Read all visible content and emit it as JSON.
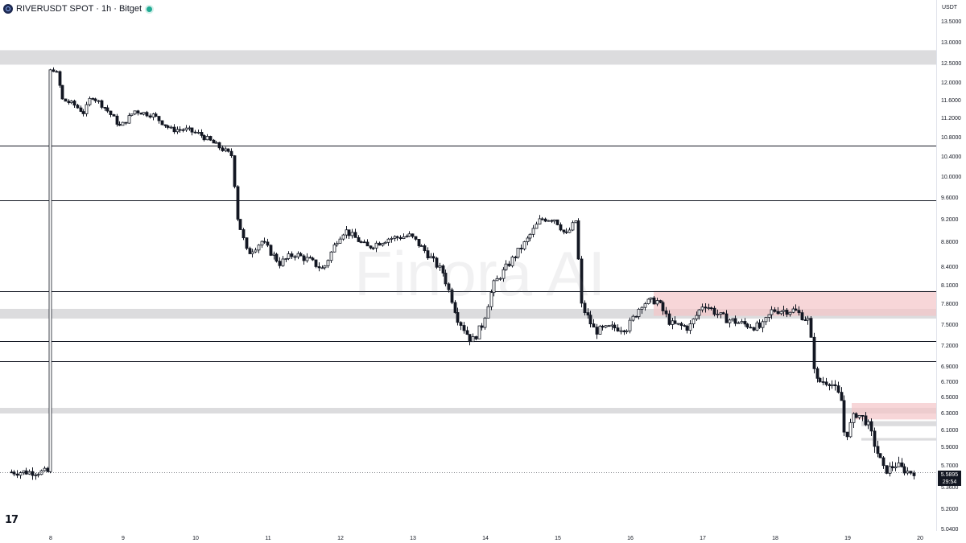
{
  "header": {
    "title": "RIVERUSDT SPOT · 1h · Bitget"
  },
  "axis": {
    "currency": "USDT"
  },
  "watermark": "Finora AI",
  "last_price": {
    "price": "5.5895",
    "countdown": "29:54"
  },
  "colors": {
    "candle_up": "#ffffff",
    "candle_down": "#131722",
    "zone_grey": "#dcdcde",
    "zone_red": "#f4c4c8",
    "level_line": "#131722",
    "live_dot": "#22ab94"
  },
  "chart_data": {
    "type": "candlestick",
    "symbol": "RIVERUSDT",
    "exchange": "Bitget",
    "timeframe": "1h",
    "ylim": [
      5.04,
      13.5
    ],
    "y_ticks": [
      "13.5000",
      "13.0000",
      "12.5000",
      "12.0000",
      "11.6000",
      "11.2000",
      "10.8000",
      "10.4000",
      "10.0000",
      "9.6000",
      "9.2000",
      "8.8000",
      "8.4000",
      "8.1000",
      "7.8000",
      "7.5000",
      "7.2000",
      "6.9000",
      "6.7000",
      "6.5000",
      "6.3000",
      "6.1000",
      "5.9000",
      "5.7000",
      "5.3600",
      "5.2000",
      "5.0400"
    ],
    "x_ticks": [
      "8",
      "9",
      "10",
      "11",
      "12",
      "13",
      "14",
      "15",
      "16",
      "17",
      "18",
      "19",
      "20"
    ],
    "close_path": [
      [
        "8",
        12.25
      ],
      [
        "8.1",
        12.35
      ],
      [
        "8.2",
        11.6
      ],
      [
        "8.35",
        11.5
      ],
      [
        "8.5",
        11.3
      ],
      [
        "8.6",
        11.7
      ],
      [
        "8.8",
        11.4
      ],
      [
        "9",
        11.0
      ],
      [
        "9.2",
        11.35
      ],
      [
        "9.45",
        11.25
      ],
      [
        "9.7",
        10.95
      ],
      [
        "9.9",
        10.95
      ],
      [
        "10.1",
        10.85
      ],
      [
        "10.3",
        10.65
      ],
      [
        "10.45",
        10.5
      ],
      [
        "10.55",
        10.4
      ],
      [
        "10.6",
        9.3
      ],
      [
        "10.75",
        8.6
      ],
      [
        "10.95",
        8.8
      ],
      [
        "11.2",
        8.45
      ],
      [
        "11.4",
        8.6
      ],
      [
        "11.6",
        8.5
      ],
      [
        "11.8",
        8.35
      ],
      [
        "12.0",
        8.85
      ],
      [
        "12.1",
        9.0
      ],
      [
        "12.4",
        8.7
      ],
      [
        "12.7",
        8.85
      ],
      [
        "13.0",
        8.9
      ],
      [
        "13.2",
        8.65
      ],
      [
        "13.45",
        8.3
      ],
      [
        "13.65",
        7.6
      ],
      [
        "13.85",
        7.25
      ],
      [
        "14.0",
        7.5
      ],
      [
        "14.15",
        8.1
      ],
      [
        "14.4",
        8.5
      ],
      [
        "14.6",
        8.8
      ],
      [
        "14.8",
        9.2
      ],
      [
        "15.0",
        9.2
      ],
      [
        "15.15",
        8.9
      ],
      [
        "15.3",
        9.2
      ],
      [
        "15.35",
        7.8
      ],
      [
        "15.55",
        7.4
      ],
      [
        "15.8",
        7.45
      ],
      [
        "16.0",
        7.45
      ],
      [
        "16.2",
        7.8
      ],
      [
        "16.4",
        7.85
      ],
      [
        "16.6",
        7.5
      ],
      [
        "16.85",
        7.45
      ],
      [
        "17.05",
        7.8
      ],
      [
        "17.3",
        7.6
      ],
      [
        "17.6",
        7.5
      ],
      [
        "17.85",
        7.45
      ],
      [
        "18.0",
        7.7
      ],
      [
        "18.3",
        7.7
      ],
      [
        "18.5",
        7.55
      ],
      [
        "18.6",
        6.7
      ],
      [
        "18.8",
        6.7
      ],
      [
        "18.95",
        6.45
      ],
      [
        "19.0",
        6.0
      ],
      [
        "19.15",
        6.3
      ],
      [
        "19.3",
        6.2
      ],
      [
        "19.4",
        5.95
      ],
      [
        "19.55",
        5.6
      ],
      [
        "19.7",
        5.7
      ],
      [
        "19.85",
        5.6
      ],
      [
        "19.9",
        5.5895
      ]
    ],
    "horizontal_levels": [
      10.62,
      9.54,
      8.0,
      7.26,
      6.97
    ],
    "zones": [
      {
        "color": "grey",
        "from": 12.45,
        "to": 12.8
      },
      {
        "color": "grey",
        "from": 7.58,
        "to": 7.72
      },
      {
        "color": "red",
        "from": 7.62,
        "to": 8.0
      },
      {
        "color": "grey",
        "from": 6.29,
        "to": 6.36
      },
      {
        "color": "red",
        "from": 6.22,
        "to": 6.42
      },
      {
        "color": "grey",
        "from": 6.14,
        "to": 6.2
      },
      {
        "color": "grey",
        "from": 5.97,
        "to": 6.0
      }
    ],
    "last_price": 5.5895
  }
}
